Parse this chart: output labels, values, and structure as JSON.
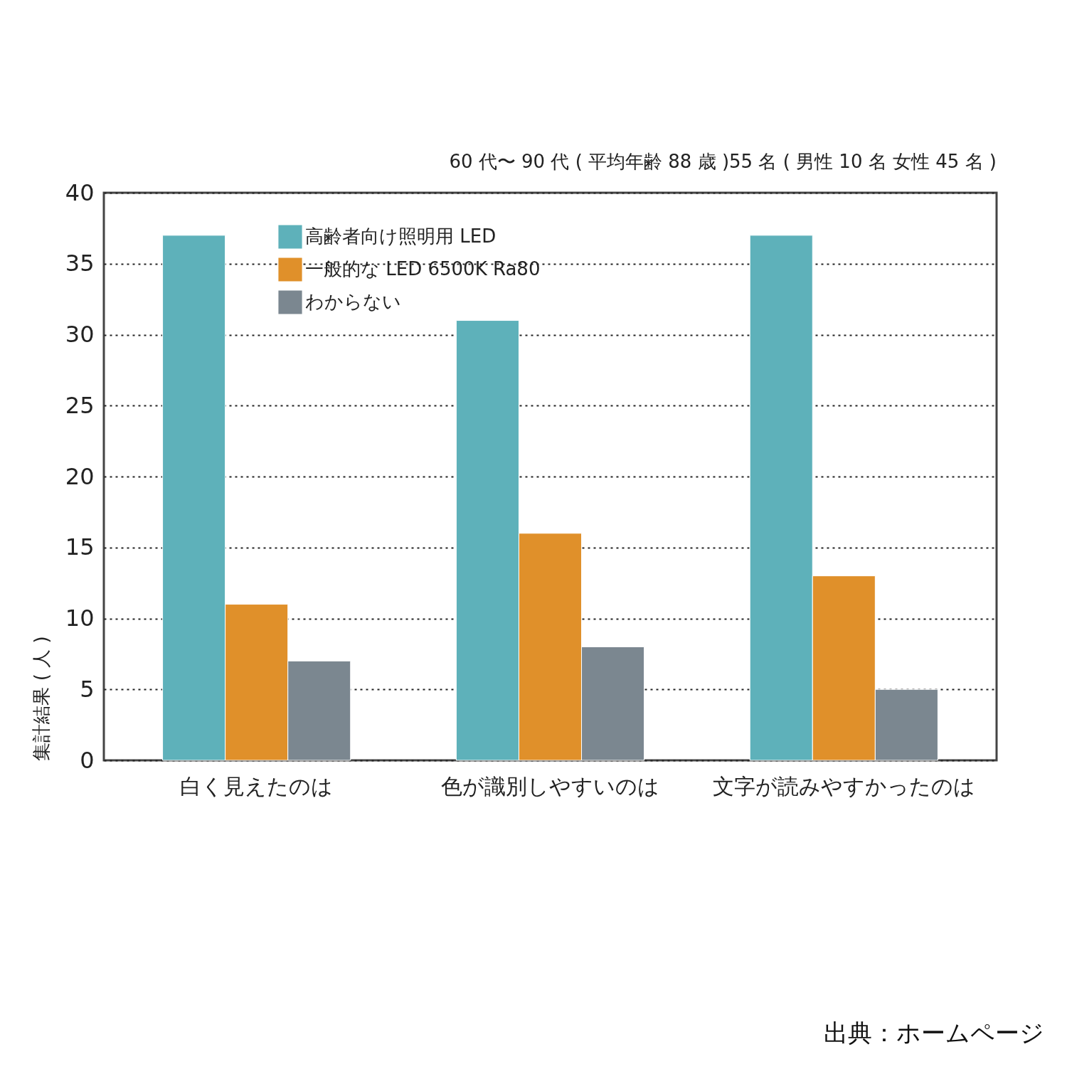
{
  "chart_data": {
    "type": "bar",
    "title": "60 代〜 90 代 ( 平均年齢 88 歳 )55 名 ( 男性 10 名 女性 45 名 )",
    "ylabel": "集計結果 ( 人 )",
    "categories": [
      "白く見えたのは",
      "色が識別しやすいのは",
      "文字が読みやすかったのは"
    ],
    "series": [
      {
        "name": "高齢者向け照明用 LED",
        "color": "#5eb1ba",
        "values": [
          37,
          31,
          37
        ]
      },
      {
        "name": "一般的な LED 6500K Ra80",
        "color": "#e0902a",
        "values": [
          11,
          16,
          13
        ]
      },
      {
        "name": "わからない",
        "color": "#7b8790",
        "values": [
          7,
          8,
          5
        ]
      }
    ],
    "ylim": [
      0,
      40
    ],
    "yticks": [
      0,
      5,
      10,
      15,
      20,
      25,
      30,
      35,
      40
    ],
    "grid": "y",
    "legend": "top left",
    "annotations": [
      "出典：ホームページ"
    ]
  }
}
